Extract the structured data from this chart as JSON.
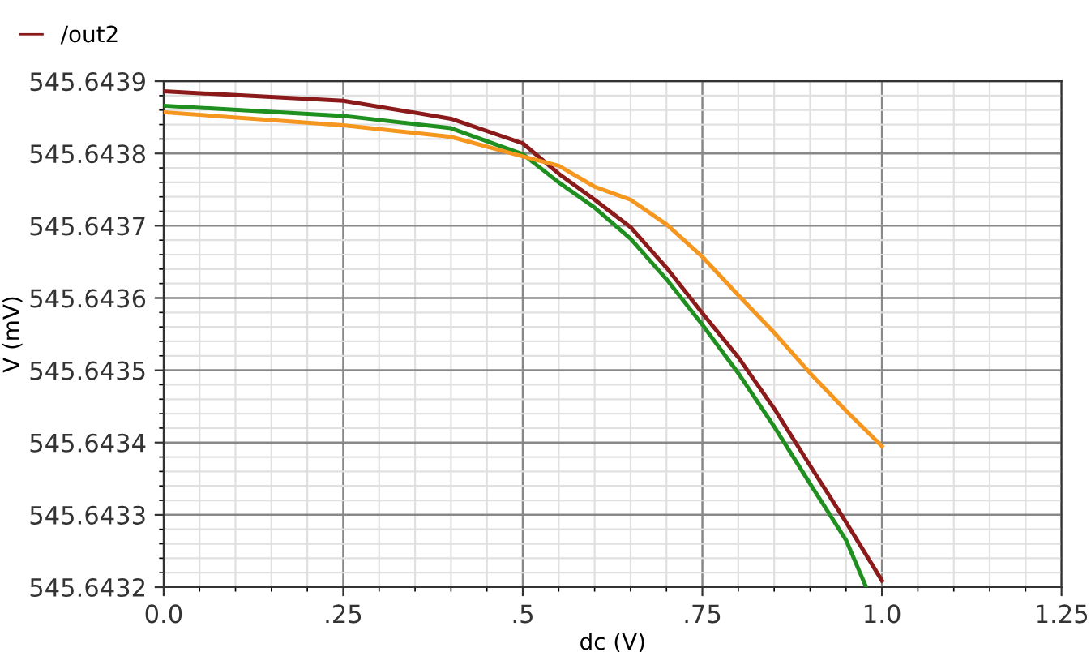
{
  "chart_data": {
    "type": "line",
    "xlabel": "dc (V)",
    "ylabel": "V (mV)",
    "xlim": [
      0.0,
      1.25
    ],
    "xticks": [
      {
        "value": 0.0,
        "label": "0.0"
      },
      {
        "value": 0.25,
        "label": ".25"
      },
      {
        "value": 0.5,
        "label": ".5"
      },
      {
        "value": 0.75,
        "label": ".75"
      },
      {
        "value": 1.0,
        "label": "1.0"
      },
      {
        "value": 1.25,
        "label": "1.25"
      }
    ],
    "ylim": [
      545.6432,
      545.6439
    ],
    "yticks": [
      545.6432,
      545.6433,
      545.6434,
      545.6435,
      545.6436,
      545.6437,
      545.6438,
      545.6439
    ],
    "grid": true,
    "legend": "top left",
    "marker": "none",
    "line_style": "solid",
    "series": [
      {
        "name": "/out2",
        "color": "#8b1a1a",
        "x": [
          0.0,
          0.25,
          0.4,
          0.5,
          0.55,
          0.6,
          0.65,
          0.7,
          0.75,
          0.8,
          0.85,
          0.9,
          0.95,
          1.0
        ],
        "values": [
          545.643886,
          545.643873,
          545.643848,
          545.643814,
          545.643772,
          545.643736,
          545.643698,
          545.643642,
          545.643579,
          545.643518,
          545.643447,
          545.643368,
          545.64329,
          545.643209
        ]
      },
      {
        "color": "#1f8f1f",
        "x": [
          0.0,
          0.25,
          0.4,
          0.5,
          0.55,
          0.6,
          0.65,
          0.7,
          0.75,
          0.8,
          0.85,
          0.9,
          0.95,
          0.978
        ],
        "values": [
          545.643866,
          545.643852,
          545.643835,
          545.643799,
          545.64376,
          545.643725,
          545.643682,
          545.643626,
          545.643563,
          545.643496,
          545.643422,
          545.643343,
          545.643265,
          545.6432
        ]
      },
      {
        "color": "#f5961e",
        "x": [
          0.0,
          0.25,
          0.4,
          0.5,
          0.55,
          0.6,
          0.65,
          0.7,
          0.75,
          0.8,
          0.85,
          0.9,
          0.95,
          1.0
        ],
        "values": [
          545.643857,
          545.643839,
          545.643823,
          545.643796,
          545.643783,
          545.643754,
          545.643736,
          545.643702,
          545.643657,
          545.643604,
          545.643552,
          545.643496,
          545.643444,
          545.643395
        ]
      }
    ]
  }
}
